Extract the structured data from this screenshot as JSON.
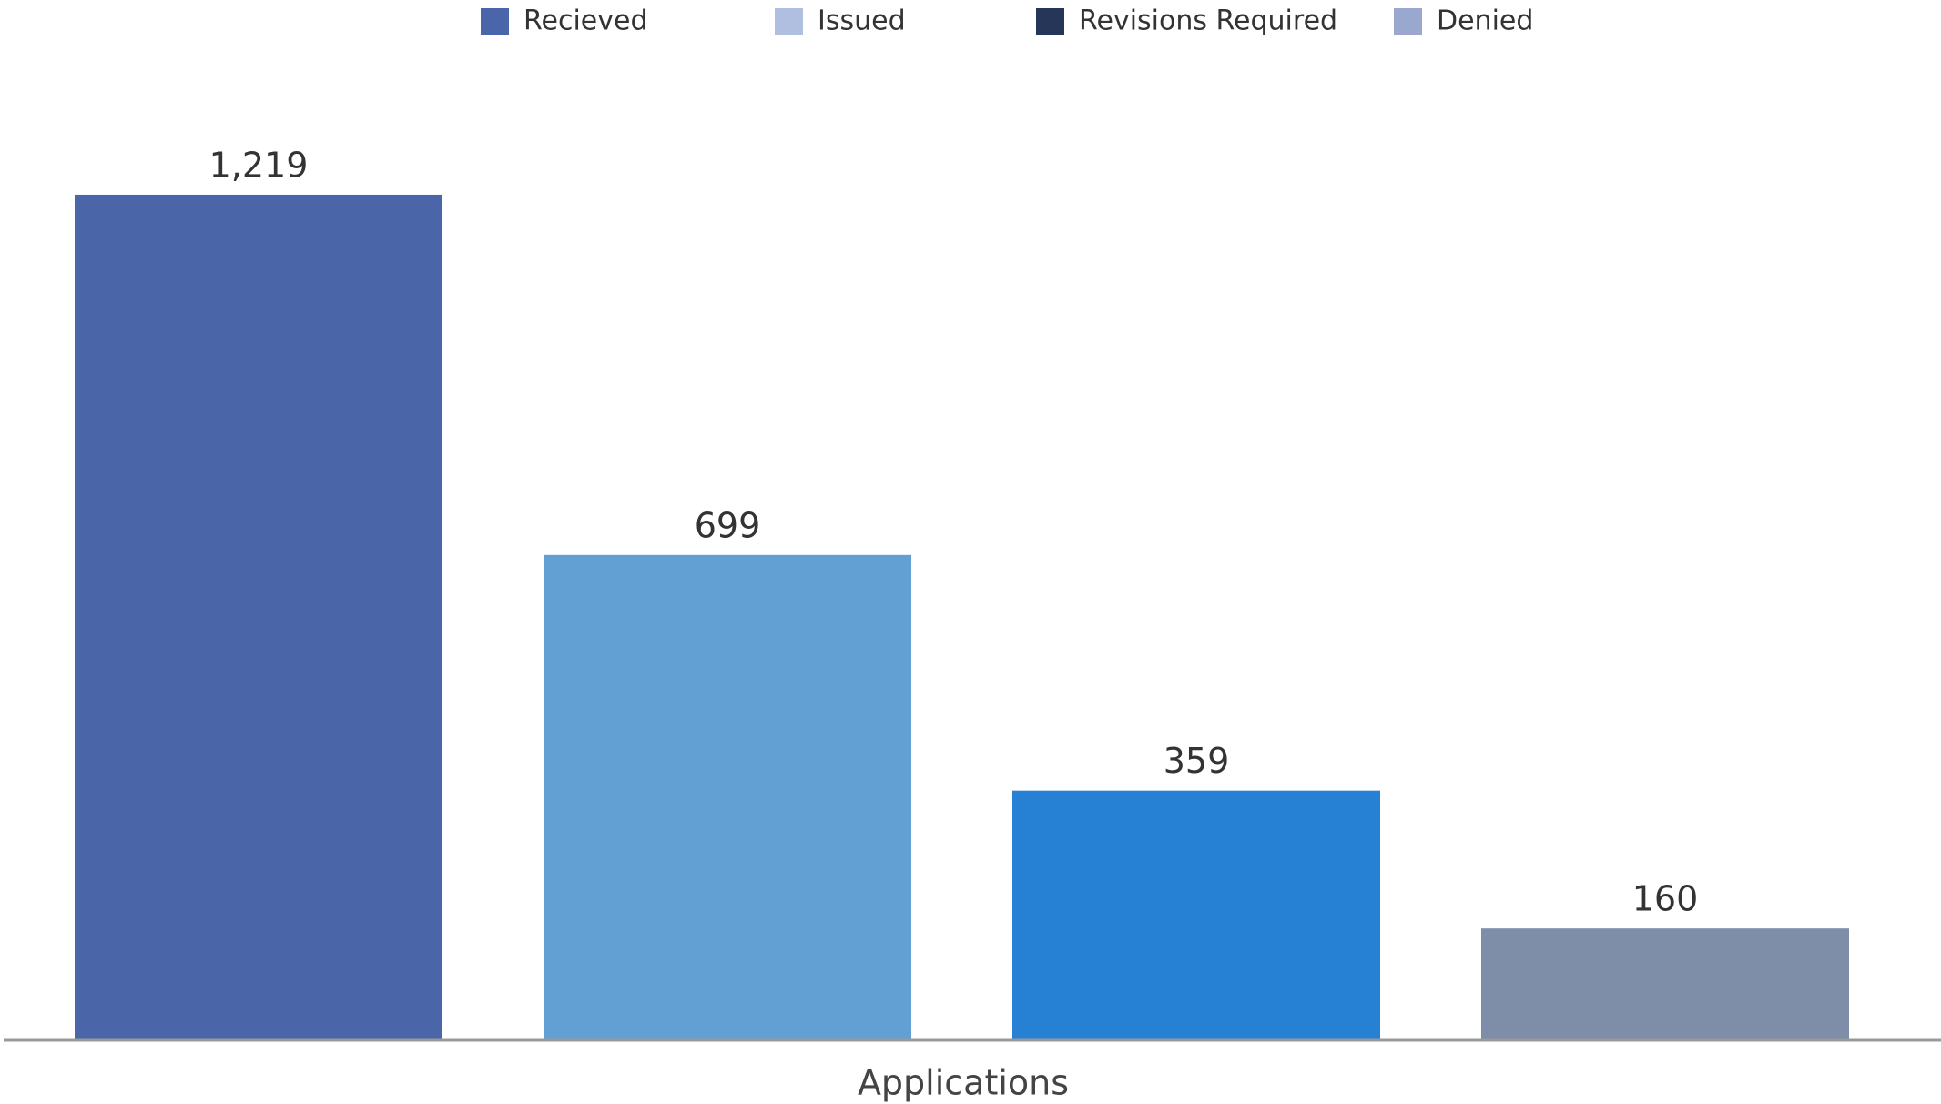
{
  "chart_data": {
    "type": "bar",
    "categories": [
      "Applications"
    ],
    "series": [
      {
        "name": "Recieved",
        "color": "#4a66a9",
        "legend_color": "#4a65a9",
        "values": [
          1219
        ],
        "value_labels": [
          "1,219"
        ]
      },
      {
        "name": "Issued",
        "color": "#629fd3",
        "legend_color": "#b0bfdf",
        "values": [
          699
        ]
      },
      {
        "name": "Revisions Required",
        "color": "#2680d4",
        "legend_color": "#253659",
        "values": [
          359
        ]
      },
      {
        "name": "Denied",
        "color": "#7f8ea8",
        "legend_color": "#9aa8cf",
        "values": [
          160
        ]
      }
    ],
    "ylim": [
      0,
      1500
    ]
  }
}
